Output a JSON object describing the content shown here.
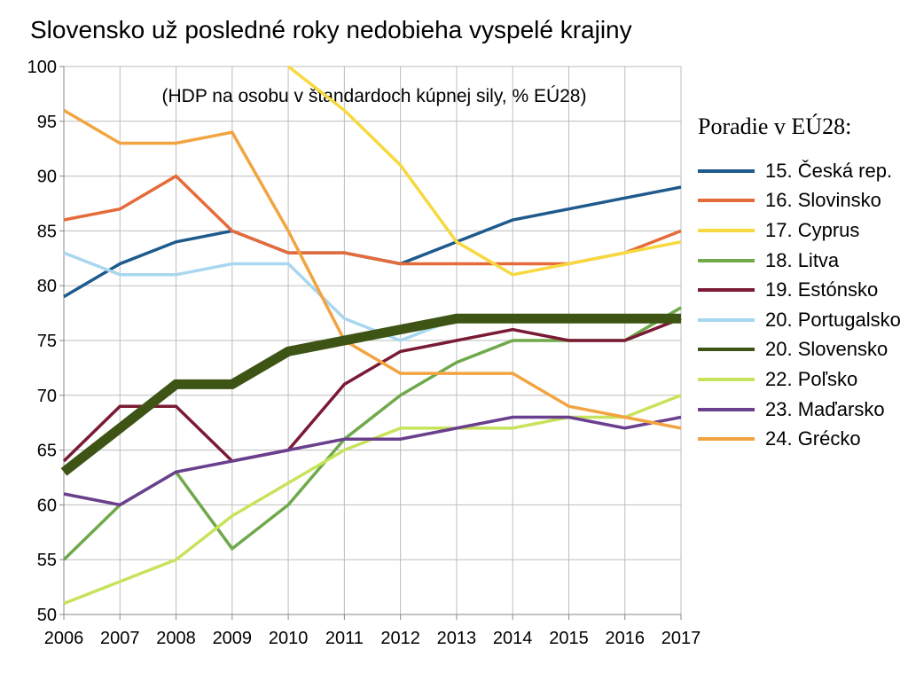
{
  "chart_data": {
    "type": "line",
    "title": "Slovensko už posledné roky nedobieha vyspelé krajiny",
    "subtitle": "(HDP na osobu v štandardoch kúpnej sily, % EÚ28)",
    "legend_title": "Poradie v EÚ28:",
    "legend_position": "right",
    "grid": true,
    "x": [
      "2006",
      "2007",
      "2008",
      "2009",
      "2010",
      "2011",
      "2012",
      "2013",
      "2014",
      "2015",
      "2016",
      "2017"
    ],
    "ylim": [
      50,
      100
    ],
    "yticks": [
      50,
      55,
      60,
      65,
      70,
      75,
      80,
      85,
      90,
      95,
      100
    ],
    "series": [
      {
        "name": "15. Česká rep.",
        "color": "#1f5a8c",
        "values": [
          79,
          82,
          84,
          85,
          83,
          83,
          82,
          84,
          86,
          87,
          88,
          89
        ]
      },
      {
        "name": "16. Slovinsko",
        "color": "#e56b3a",
        "values": [
          86,
          87,
          90,
          85,
          83,
          83,
          82,
          82,
          82,
          82,
          83,
          85
        ]
      },
      {
        "name": "17. Cyprus",
        "color": "#f7d93f",
        "values": [
          null,
          null,
          null,
          null,
          100,
          96,
          91,
          84,
          81,
          82,
          83,
          84
        ]
      },
      {
        "name": "18. Litva",
        "color": "#6fa94a",
        "values": [
          55,
          60,
          63,
          56,
          60,
          66,
          70,
          73,
          75,
          75,
          75,
          78
        ]
      },
      {
        "name": "19. Estónsko",
        "color": "#7a1a35",
        "values": [
          64,
          69,
          69,
          64,
          65,
          71,
          74,
          75,
          76,
          75,
          75,
          77
        ]
      },
      {
        "name": "20. Portugalsko",
        "color": "#a9d7ef",
        "values": [
          83,
          81,
          81,
          82,
          82,
          77,
          75,
          77,
          77,
          77,
          77,
          77
        ]
      },
      {
        "name": "20. Slovensko",
        "color": "#3d5414",
        "values": [
          63,
          67,
          71,
          71,
          74,
          75,
          76,
          77,
          77,
          77,
          77,
          77
        ]
      },
      {
        "name": "22. Poľsko",
        "color": "#c7e35b",
        "values": [
          51,
          53,
          55,
          59,
          62,
          65,
          67,
          67,
          67,
          68,
          68,
          70
        ]
      },
      {
        "name": "23. Maďarsko",
        "color": "#6a3f8e",
        "values": [
          61,
          60,
          63,
          64,
          65,
          66,
          66,
          67,
          68,
          68,
          67,
          68
        ]
      },
      {
        "name": "24. Grécko",
        "color": "#f2a440",
        "values": [
          96,
          93,
          93,
          94,
          85,
          75,
          72,
          72,
          72,
          69,
          68,
          67
        ]
      }
    ]
  }
}
